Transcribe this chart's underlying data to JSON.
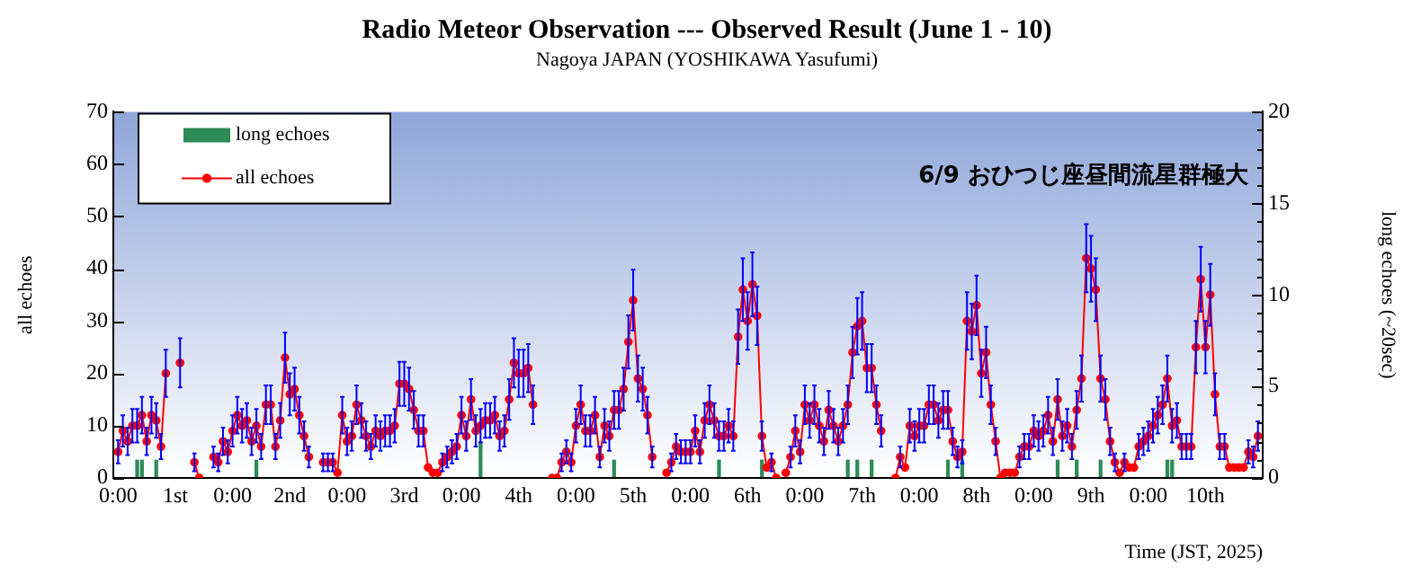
{
  "chart_data": {
    "type": "line",
    "title": "Radio Meteor Observation --- Observed Result (June 1 - 10)",
    "subtitle": "Nagoya JAPAN (YOSHIKAWA Yasufumi)",
    "xlabel": "Time (JST, 2025)",
    "ylabel": "all echoes",
    "y2label": "long echoes (~20sec)",
    "annotations": [
      "6/9 おひつじ座昼間流星群極大"
    ],
    "x": [
      "2025-06-01T00:00",
      "2025-06-01T01:00",
      "2025-06-01T02:00",
      "2025-06-01T03:00",
      "2025-06-01T04:00",
      "2025-06-01T05:00",
      "2025-06-01T06:00",
      "2025-06-01T07:00",
      "2025-06-01T08:00",
      "2025-06-01T09:00",
      "2025-06-01T10:00",
      "2025-06-01T11:00",
      "2025-06-01T12:00",
      "2025-06-01T13:00",
      "2025-06-01T14:00",
      "2025-06-01T15:00",
      "2025-06-01T16:00",
      "2025-06-01T17:00",
      "2025-06-01T18:00",
      "2025-06-01T19:00",
      "2025-06-01T20:00",
      "2025-06-01T21:00",
      "2025-06-01T22:00",
      "2025-06-01T23:00",
      "2025-06-02T00:00",
      "2025-06-02T01:00",
      "2025-06-02T02:00",
      "2025-06-02T03:00",
      "2025-06-02T04:00",
      "2025-06-02T05:00",
      "2025-06-02T06:00",
      "2025-06-02T07:00",
      "2025-06-02T08:00",
      "2025-06-02T09:00",
      "2025-06-02T10:00",
      "2025-06-02T11:00",
      "2025-06-02T12:00",
      "2025-06-02T13:00",
      "2025-06-02T14:00",
      "2025-06-02T15:00",
      "2025-06-02T16:00",
      "2025-06-02T17:00",
      "2025-06-02T18:00",
      "2025-06-02T19:00",
      "2025-06-02T20:00",
      "2025-06-02T21:00",
      "2025-06-02T22:00",
      "2025-06-02T23:00",
      "2025-06-03T00:00",
      "2025-06-03T01:00",
      "2025-06-03T02:00",
      "2025-06-03T03:00",
      "2025-06-03T04:00",
      "2025-06-03T05:00",
      "2025-06-03T06:00",
      "2025-06-03T07:00",
      "2025-06-03T08:00",
      "2025-06-03T09:00",
      "2025-06-03T10:00",
      "2025-06-03T11:00",
      "2025-06-03T12:00",
      "2025-06-03T13:00",
      "2025-06-03T14:00",
      "2025-06-03T15:00",
      "2025-06-03T16:00",
      "2025-06-03T17:00",
      "2025-06-03T18:00",
      "2025-06-03T19:00",
      "2025-06-03T20:00",
      "2025-06-03T21:00",
      "2025-06-03T22:00",
      "2025-06-03T23:00",
      "2025-06-04T00:00",
      "2025-06-04T01:00",
      "2025-06-04T02:00",
      "2025-06-04T03:00",
      "2025-06-04T04:00",
      "2025-06-04T05:00",
      "2025-06-04T06:00",
      "2025-06-04T07:00",
      "2025-06-04T08:00",
      "2025-06-04T09:00",
      "2025-06-04T10:00",
      "2025-06-04T11:00",
      "2025-06-04T12:00",
      "2025-06-04T13:00",
      "2025-06-04T14:00",
      "2025-06-04T15:00",
      "2025-06-04T16:00",
      "2025-06-04T17:00",
      "2025-06-04T18:00",
      "2025-06-04T19:00",
      "2025-06-04T20:00",
      "2025-06-04T21:00",
      "2025-06-04T22:00",
      "2025-06-04T23:00",
      "2025-06-05T00:00",
      "2025-06-05T01:00",
      "2025-06-05T02:00",
      "2025-06-05T03:00",
      "2025-06-05T04:00",
      "2025-06-05T05:00",
      "2025-06-05T06:00",
      "2025-06-05T07:00",
      "2025-06-05T08:00",
      "2025-06-05T09:00",
      "2025-06-05T10:00",
      "2025-06-05T11:00",
      "2025-06-05T12:00",
      "2025-06-05T13:00",
      "2025-06-05T14:00",
      "2025-06-05T15:00",
      "2025-06-05T16:00",
      "2025-06-05T17:00",
      "2025-06-05T18:00",
      "2025-06-05T19:00",
      "2025-06-05T20:00",
      "2025-06-05T21:00",
      "2025-06-05T22:00",
      "2025-06-05T23:00",
      "2025-06-06T00:00",
      "2025-06-06T01:00",
      "2025-06-06T02:00",
      "2025-06-06T03:00",
      "2025-06-06T04:00",
      "2025-06-06T05:00",
      "2025-06-06T06:00",
      "2025-06-06T07:00",
      "2025-06-06T08:00",
      "2025-06-06T09:00",
      "2025-06-06T10:00",
      "2025-06-06T11:00",
      "2025-06-06T12:00",
      "2025-06-06T13:00",
      "2025-06-06T14:00",
      "2025-06-06T15:00",
      "2025-06-06T16:00",
      "2025-06-06T17:00",
      "2025-06-06T18:00",
      "2025-06-06T19:00",
      "2025-06-06T20:00",
      "2025-06-06T21:00",
      "2025-06-06T22:00",
      "2025-06-06T23:00",
      "2025-06-07T00:00",
      "2025-06-07T01:00",
      "2025-06-07T02:00",
      "2025-06-07T03:00",
      "2025-06-07T04:00",
      "2025-06-07T05:00",
      "2025-06-07T06:00",
      "2025-06-07T07:00",
      "2025-06-07T08:00",
      "2025-06-07T09:00",
      "2025-06-07T10:00",
      "2025-06-07T11:00",
      "2025-06-07T12:00",
      "2025-06-07T13:00",
      "2025-06-07T14:00",
      "2025-06-07T15:00",
      "2025-06-07T16:00",
      "2025-06-07T17:00",
      "2025-06-07T18:00",
      "2025-06-07T19:00",
      "2025-06-07T20:00",
      "2025-06-07T21:00",
      "2025-06-07T22:00",
      "2025-06-07T23:00",
      "2025-06-08T00:00",
      "2025-06-08T01:00",
      "2025-06-08T02:00",
      "2025-06-08T03:00",
      "2025-06-08T04:00",
      "2025-06-08T05:00",
      "2025-06-08T06:00",
      "2025-06-08T07:00",
      "2025-06-08T08:00",
      "2025-06-08T09:00",
      "2025-06-08T10:00",
      "2025-06-08T11:00",
      "2025-06-08T12:00",
      "2025-06-08T13:00",
      "2025-06-08T14:00",
      "2025-06-08T15:00",
      "2025-06-08T16:00",
      "2025-06-08T17:00",
      "2025-06-08T18:00",
      "2025-06-08T19:00",
      "2025-06-08T20:00",
      "2025-06-08T21:00",
      "2025-06-08T22:00",
      "2025-06-08T23:00",
      "2025-06-09T00:00",
      "2025-06-09T01:00",
      "2025-06-09T02:00",
      "2025-06-09T03:00",
      "2025-06-09T04:00",
      "2025-06-09T05:00",
      "2025-06-09T06:00",
      "2025-06-09T07:00",
      "2025-06-09T08:00",
      "2025-06-09T09:00",
      "2025-06-09T10:00",
      "2025-06-09T11:00",
      "2025-06-09T12:00",
      "2025-06-09T13:00",
      "2025-06-09T14:00",
      "2025-06-09T15:00",
      "2025-06-09T16:00",
      "2025-06-09T17:00",
      "2025-06-09T18:00",
      "2025-06-09T19:00",
      "2025-06-09T20:00",
      "2025-06-09T21:00",
      "2025-06-09T22:00",
      "2025-06-09T23:00",
      "2025-06-10T00:00",
      "2025-06-10T01:00",
      "2025-06-10T02:00",
      "2025-06-10T03:00",
      "2025-06-10T04:00",
      "2025-06-10T05:00",
      "2025-06-10T06:00",
      "2025-06-10T07:00",
      "2025-06-10T08:00",
      "2025-06-10T09:00",
      "2025-06-10T10:00",
      "2025-06-10T11:00",
      "2025-06-10T12:00",
      "2025-06-10T13:00",
      "2025-06-10T14:00",
      "2025-06-10T15:00",
      "2025-06-10T16:00",
      "2025-06-10T17:00",
      "2025-06-10T18:00",
      "2025-06-10T19:00",
      "2025-06-10T20:00",
      "2025-06-10T21:00",
      "2025-06-10T22:00",
      "2025-06-10T23:00"
    ],
    "series": [
      {
        "name": "long echoes",
        "type": "bar",
        "axis": "y2",
        "color": "#2e8b57",
        "x": [
          "2025-06-01T04:00",
          "2025-06-01T05:00",
          "2025-06-01T08:00",
          "2025-06-02T05:00",
          "2025-06-04T04:00",
          "2025-06-05T08:00",
          "2025-06-06T06:00",
          "2025-06-06T15:00",
          "2025-06-07T09:00",
          "2025-06-07T11:00",
          "2025-06-07T14:00",
          "2025-06-08T06:00",
          "2025-06-08T09:00",
          "2025-06-09T05:00",
          "2025-06-09T09:00",
          "2025-06-09T14:00",
          "2025-06-10T04:00",
          "2025-06-10T05:00"
        ],
        "values": [
          1,
          1,
          1,
          1,
          2,
          1,
          1,
          1,
          1,
          1,
          1,
          1,
          1,
          1,
          1,
          1,
          1,
          1
        ]
      },
      {
        "name": "all echoes",
        "color": "#ff0000",
        "values": [
          5,
          9,
          7,
          10,
          10,
          12,
          7,
          12,
          11,
          6,
          20,
          null,
          null,
          22,
          null,
          null,
          3,
          0,
          null,
          null,
          4,
          3,
          7,
          5,
          9,
          12,
          10,
          11,
          7,
          10,
          6,
          14,
          14,
          6,
          11,
          23,
          16,
          17,
          12,
          8,
          4,
          null,
          null,
          3,
          3,
          3,
          1,
          12,
          7,
          8,
          14,
          11,
          8,
          6,
          9,
          8,
          9,
          9,
          10,
          18,
          18,
          17,
          13,
          9,
          9,
          2,
          1,
          1,
          3,
          4,
          5,
          6,
          12,
          8,
          15,
          9,
          10,
          11,
          11,
          12,
          8,
          9,
          15,
          22,
          20,
          20,
          21,
          14,
          null,
          null,
          null,
          0,
          0,
          3,
          5,
          3,
          10,
          14,
          9,
          9,
          12,
          4,
          10,
          8,
          13,
          13,
          17,
          26,
          34,
          19,
          17,
          12,
          4,
          null,
          null,
          1,
          3,
          6,
          5,
          5,
          5,
          9,
          5,
          11,
          14,
          11,
          8,
          8,
          10,
          8,
          27,
          36,
          30,
          37,
          31,
          8,
          2,
          3,
          0,
          null,
          1,
          4,
          9,
          5,
          14,
          11,
          14,
          10,
          7,
          13,
          10,
          7,
          10,
          14,
          24,
          29,
          30,
          21,
          21,
          14,
          9,
          null,
          null,
          0,
          4,
          2,
          10,
          8,
          10,
          10,
          14,
          14,
          11,
          13,
          13,
          7,
          4,
          5,
          30,
          28,
          33,
          20,
          24,
          14,
          7,
          0,
          1,
          1,
          1,
          4,
          6,
          6,
          9,
          8,
          9,
          12,
          7,
          15,
          8,
          10,
          6,
          13,
          19,
          42,
          40,
          36,
          19,
          15,
          7,
          3,
          1,
          3,
          2,
          2,
          6,
          7,
          8,
          10,
          12,
          14,
          19,
          10,
          11,
          6,
          6,
          6,
          25,
          38,
          25,
          35,
          16,
          6,
          6,
          2,
          2,
          2,
          2,
          5,
          4,
          8
        ],
        "errors": [
          2.2,
          3,
          2.6,
          3.2,
          3.2,
          3.5,
          2.6,
          3.5,
          3.3,
          2.4,
          4.5,
          null,
          null,
          4.7,
          null,
          null,
          1.7,
          null,
          null,
          null,
          2,
          1.7,
          2.6,
          2.2,
          3,
          3.5,
          3.2,
          3.3,
          2.6,
          3.2,
          2.4,
          3.7,
          3.7,
          2.4,
          3.3,
          4.8,
          4,
          4.1,
          3.5,
          2.8,
          2,
          null,
          null,
          1.7,
          1.7,
          1.7,
          null,
          3.5,
          2.6,
          2.8,
          3.7,
          3.3,
          2.8,
          2.4,
          3,
          2.8,
          3,
          3,
          3.2,
          4.2,
          4.2,
          4.1,
          3.6,
          3,
          3,
          null,
          null,
          null,
          1.7,
          2,
          2.2,
          2.4,
          3.5,
          2.8,
          3.9,
          3,
          3.2,
          3.3,
          3.3,
          3.5,
          2.8,
          3,
          3.9,
          4.7,
          4.5,
          4.5,
          4.6,
          3.7,
          null,
          null,
          null,
          null,
          null,
          1.7,
          2.2,
          1.7,
          3.2,
          3.7,
          3,
          3,
          3.5,
          2,
          3.2,
          2.8,
          3.6,
          3.6,
          4.1,
          5.1,
          5.8,
          4.4,
          4.1,
          3.5,
          2,
          null,
          null,
          null,
          1.7,
          2.4,
          2.2,
          2.2,
          2.2,
          3,
          2.2,
          3.3,
          3.7,
          3.3,
          2.8,
          2.8,
          3.2,
          2.8,
          5.2,
          6,
          5.5,
          6.1,
          5.6,
          2.8,
          null,
          1.7,
          null,
          null,
          null,
          2,
          3,
          2.2,
          3.7,
          3.3,
          3.7,
          3.2,
          2.6,
          3.6,
          3.2,
          2.6,
          3.2,
          3.7,
          4.9,
          5.4,
          5.5,
          4.6,
          4.6,
          3.7,
          3,
          null,
          null,
          null,
          2,
          null,
          3.2,
          2.8,
          3.2,
          3.2,
          3.7,
          3.7,
          3.3,
          3.6,
          3.6,
          2.6,
          2,
          2.2,
          5.5,
          5.3,
          5.7,
          4.5,
          4.9,
          3.7,
          2.6,
          null,
          null,
          null,
          null,
          2,
          2.4,
          2.4,
          3,
          2.8,
          3,
          3.5,
          2.6,
          3.9,
          2.8,
          3.2,
          2.4,
          3.6,
          4.4,
          6.5,
          6.3,
          6,
          4.4,
          3.9,
          2.6,
          1.7,
          null,
          1.7,
          null,
          null,
          2.4,
          2.6,
          2.8,
          3.2,
          3.5,
          3.7,
          4.4,
          3.2,
          3.3,
          2.4,
          2.4,
          2.4,
          5,
          6.2,
          5,
          5.9,
          4,
          2.4,
          2.4,
          null,
          null,
          null,
          null,
          2.2,
          2,
          2.8
        ]
      }
    ],
    "xlim": [
      "2025-05-31T23:00",
      "2025-06-11T00:00"
    ],
    "xticks": [
      {
        "value": "2025-06-01T00:00",
        "label": "0:00"
      },
      {
        "value": "2025-06-01T12:00",
        "label": "1st"
      },
      {
        "value": "2025-06-02T00:00",
        "label": "0:00"
      },
      {
        "value": "2025-06-02T12:00",
        "label": "2nd"
      },
      {
        "value": "2025-06-03T00:00",
        "label": "0:00"
      },
      {
        "value": "2025-06-03T12:00",
        "label": "3rd"
      },
      {
        "value": "2025-06-04T00:00",
        "label": "0:00"
      },
      {
        "value": "2025-06-04T12:00",
        "label": "4th"
      },
      {
        "value": "2025-06-05T00:00",
        "label": "0:00"
      },
      {
        "value": "2025-06-05T12:00",
        "label": "5th"
      },
      {
        "value": "2025-06-06T00:00",
        "label": "0:00"
      },
      {
        "value": "2025-06-06T12:00",
        "label": "6th"
      },
      {
        "value": "2025-06-07T00:00",
        "label": "0:00"
      },
      {
        "value": "2025-06-07T12:00",
        "label": "7th"
      },
      {
        "value": "2025-06-08T00:00",
        "label": "0:00"
      },
      {
        "value": "2025-06-08T12:00",
        "label": "8th"
      },
      {
        "value": "2025-06-09T00:00",
        "label": "0:00"
      },
      {
        "value": "2025-06-09T12:00",
        "label": "9th"
      },
      {
        "value": "2025-06-10T00:00",
        "label": "0:00"
      },
      {
        "value": "2025-06-10T12:00",
        "label": "10th"
      }
    ],
    "ylim": [
      0,
      70
    ],
    "yticks": [
      0,
      10,
      20,
      30,
      40,
      50,
      60,
      70
    ],
    "y2lim": [
      0,
      20
    ],
    "y2ticks": [
      0,
      {
        "value": 1,
        "label": null
      },
      {
        "value": 2,
        "label": null
      },
      {
        "value": 3,
        "label": null
      },
      {
        "value": 4,
        "label": null
      },
      5,
      {
        "value": 6,
        "label": null
      },
      {
        "value": 7,
        "label": null
      },
      {
        "value": 8,
        "label": null
      },
      {
        "value": 9,
        "label": null
      },
      10,
      {
        "value": 11,
        "label": null
      },
      {
        "value": 12,
        "label": null
      },
      {
        "value": 13,
        "label": null
      },
      {
        "value": 14,
        "label": null
      },
      15,
      {
        "value": 16,
        "label": null
      },
      {
        "value": 17,
        "label": null
      },
      {
        "value": 18,
        "label": null
      },
      {
        "value": 19,
        "label": null
      },
      20
    ],
    "legend": "top left",
    "marker": "circle"
  }
}
